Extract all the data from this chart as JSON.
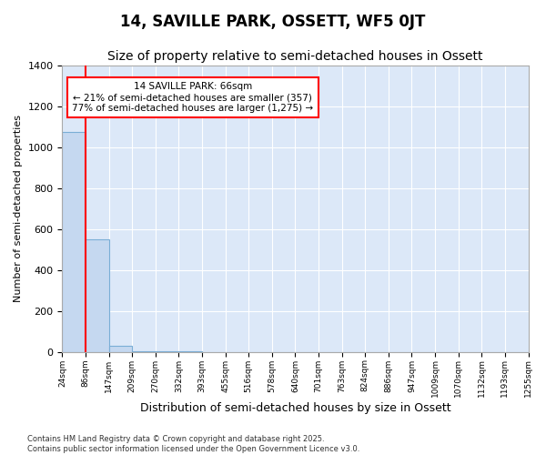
{
  "title": "14, SAVILLE PARK, OSSETT, WF5 0JT",
  "subtitle": "Size of property relative to semi-detached houses in Ossett",
  "xlabel": "Distribution of semi-detached houses by size in Ossett",
  "ylabel": "Number of semi-detached properties",
  "bar_color": "#c5d8f0",
  "bar_edge_color": "#7aaed6",
  "bins": [
    "24sqm",
    "86sqm",
    "147sqm",
    "209sqm",
    "270sqm",
    "332sqm",
    "393sqm",
    "455sqm",
    "516sqm",
    "578sqm",
    "640sqm",
    "701sqm",
    "763sqm",
    "824sqm",
    "886sqm",
    "947sqm",
    "1009sqm",
    "1070sqm",
    "1132sqm",
    "1193sqm",
    "1255sqm"
  ],
  "values": [
    1075,
    550,
    30,
    5,
    2,
    1,
    0,
    0,
    0,
    0,
    0,
    0,
    0,
    0,
    0,
    0,
    0,
    0,
    0,
    0
  ],
  "red_line_x": 1,
  "annotation_text": "14 SAVILLE PARK: 66sqm\n← 21% of semi-detached houses are smaller (357)\n77% of semi-detached houses are larger (1,275) →",
  "ylim": [
    0,
    1400
  ],
  "yticks": [
    0,
    200,
    400,
    600,
    800,
    1000,
    1200,
    1400
  ],
  "plot_bg_color": "#dce8f8",
  "figure_bg_color": "#ffffff",
  "grid_color": "#ffffff",
  "footer_text": "Contains HM Land Registry data © Crown copyright and database right 2025.\nContains public sector information licensed under the Open Government Licence v3.0.",
  "title_fontsize": 12,
  "subtitle_fontsize": 10,
  "ylabel_fontsize": 8,
  "xlabel_fontsize": 9
}
